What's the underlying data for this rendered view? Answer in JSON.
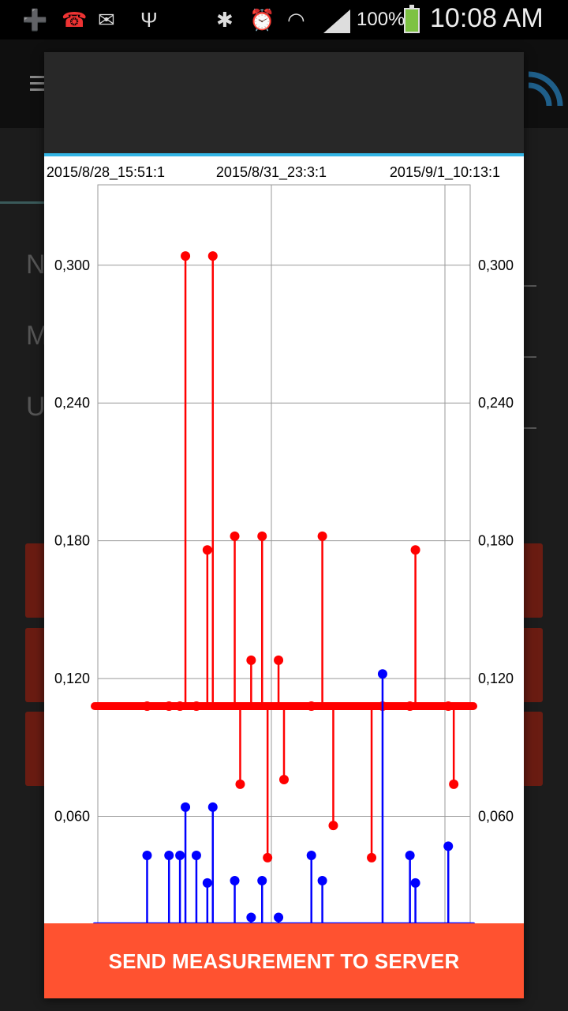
{
  "status_bar": {
    "battery_percent": "100%",
    "time": "10:08 AM",
    "icons": [
      "add-notification-icon",
      "missed-call-icon",
      "email-icon",
      "usb-icon",
      "bluetooth-icon",
      "alarm-icon",
      "wifi-icon",
      "signal-icon",
      "battery-charging-icon"
    ]
  },
  "background": {
    "letters": [
      "N",
      "M",
      "U"
    ],
    "accent_button_color": "#6a1c12"
  },
  "dialog": {
    "accent_color": "#33b5e5",
    "send_button_label": "SEND MEASUREMENT TO SERVER",
    "send_button_color": "#ff5230"
  },
  "chart_data": {
    "type": "scatter",
    "style": "stem",
    "x_tick_labels": [
      "2015/8/28_15:51:1",
      "2015/8/31_23:3:1",
      "2015/9/1_10:13:1"
    ],
    "y_tick_labels": [
      "0,060",
      "0,120",
      "0,180",
      "0,240",
      "0,300"
    ],
    "y_ticks": [
      0.06,
      0.12,
      0.18,
      0.24,
      0.3
    ],
    "ylim": [
      0.0,
      0.335
    ],
    "grid": true,
    "x_index_range": [
      0,
      68
    ],
    "series": [
      {
        "color": "#ff0000",
        "baseline": 0.108,
        "points": [
          {
            "x": 9,
            "y": 0.108
          },
          {
            "x": 13,
            "y": 0.108
          },
          {
            "x": 15,
            "y": 0.108
          },
          {
            "x": 16,
            "y": 0.304
          },
          {
            "x": 18,
            "y": 0.108
          },
          {
            "x": 20,
            "y": 0.176
          },
          {
            "x": 21,
            "y": 0.304
          },
          {
            "x": 25,
            "y": 0.182
          },
          {
            "x": 26,
            "y": 0.074
          },
          {
            "x": 28,
            "y": 0.128
          },
          {
            "x": 30,
            "y": 0.182
          },
          {
            "x": 31,
            "y": 0.042
          },
          {
            "x": 33,
            "y": 0.128
          },
          {
            "x": 34,
            "y": 0.076
          },
          {
            "x": 39,
            "y": 0.108
          },
          {
            "x": 41,
            "y": 0.182
          },
          {
            "x": 43,
            "y": 0.056
          },
          {
            "x": 50,
            "y": 0.042
          },
          {
            "x": 52,
            "y": 0.108
          },
          {
            "x": 57,
            "y": 0.108
          },
          {
            "x": 58,
            "y": 0.176
          },
          {
            "x": 64,
            "y": 0.108
          },
          {
            "x": 65,
            "y": 0.074
          }
        ]
      },
      {
        "color": "#0000ff",
        "baseline": 0.013,
        "points": [
          {
            "x": 9,
            "y": 0.043
          },
          {
            "x": 13,
            "y": 0.043
          },
          {
            "x": 15,
            "y": 0.043
          },
          {
            "x": 16,
            "y": 0.064
          },
          {
            "x": 18,
            "y": 0.043
          },
          {
            "x": 20,
            "y": 0.031
          },
          {
            "x": 21,
            "y": 0.064
          },
          {
            "x": 25,
            "y": 0.032
          },
          {
            "x": 28,
            "y": 0.016
          },
          {
            "x": 30,
            "y": 0.032
          },
          {
            "x": 33,
            "y": 0.016
          },
          {
            "x": 39,
            "y": 0.043
          },
          {
            "x": 41,
            "y": 0.032
          },
          {
            "x": 52,
            "y": 0.122
          },
          {
            "x": 57,
            "y": 0.043
          },
          {
            "x": 58,
            "y": 0.031
          },
          {
            "x": 64,
            "y": 0.047
          }
        ]
      }
    ]
  }
}
